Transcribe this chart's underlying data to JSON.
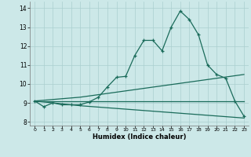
{
  "xlabel": "Humidex (Indice chaleur)",
  "background_color": "#cce8e8",
  "grid_color": "#aacfcf",
  "line_color": "#1a6b5a",
  "xlim": [
    -0.5,
    23.5
  ],
  "ylim": [
    7.8,
    14.35
  ],
  "xticks": [
    0,
    1,
    2,
    3,
    4,
    5,
    6,
    7,
    8,
    9,
    10,
    11,
    12,
    13,
    14,
    15,
    16,
    17,
    18,
    19,
    20,
    21,
    22,
    23
  ],
  "yticks": [
    8,
    9,
    10,
    11,
    12,
    13,
    14
  ],
  "line1_x": [
    0,
    1,
    2,
    3,
    4,
    5,
    6,
    7,
    8,
    9,
    10,
    11,
    12,
    13,
    14,
    15,
    16,
    17,
    18,
    19,
    20,
    21,
    22,
    23
  ],
  "line1_y": [
    9.1,
    8.8,
    9.0,
    8.9,
    8.9,
    8.9,
    9.05,
    9.3,
    9.85,
    10.35,
    10.4,
    11.5,
    12.3,
    12.3,
    11.75,
    13.0,
    13.85,
    13.4,
    12.6,
    11.0,
    10.5,
    10.3,
    9.1,
    8.3
  ],
  "line2_x": [
    0,
    23
  ],
  "line2_y": [
    9.1,
    9.1
  ],
  "line3_x": [
    0,
    5,
    23
  ],
  "line3_y": [
    9.1,
    9.3,
    10.5
  ],
  "line4_x": [
    0,
    5,
    23
  ],
  "line4_y": [
    9.1,
    8.85,
    8.2
  ]
}
